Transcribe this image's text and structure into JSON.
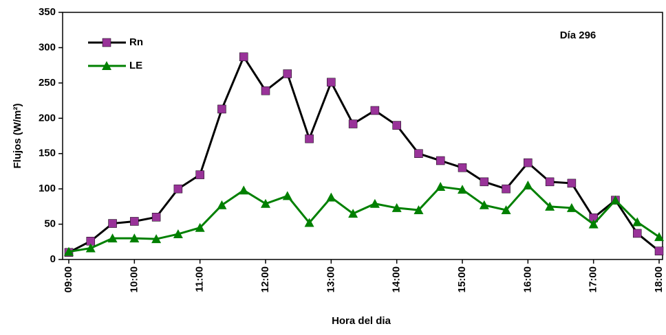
{
  "chart_data": {
    "type": "line",
    "x_label": "Hora del dia",
    "y_label": "Flujos  (W/m²)",
    "annotation": "Día 296",
    "categories": [
      "09:00",
      null,
      null,
      "10:00",
      null,
      null,
      "11:00",
      null,
      null,
      "12:00",
      null,
      null,
      "13:00",
      null,
      null,
      "14:00",
      null,
      null,
      "15:00",
      null,
      null,
      "16:00",
      null,
      null,
      "17:00",
      null,
      null,
      "18:00"
    ],
    "series": [
      {
        "name": "Rn",
        "color": "#000000",
        "marker_color": "#993399",
        "marker": "square",
        "values": [
          10,
          26,
          51,
          54,
          60,
          100,
          120,
          213,
          287,
          239,
          263,
          171,
          251,
          192,
          211,
          190,
          150,
          140,
          130,
          110,
          100,
          137,
          110,
          108,
          59,
          84,
          37,
          12
        ]
      },
      {
        "name": "LE",
        "color": "#008000",
        "marker_color": "#008000",
        "marker": "triangle",
        "values": [
          11,
          16,
          30,
          30,
          29,
          36,
          45,
          77,
          98,
          79,
          90,
          52,
          88,
          65,
          79,
          73,
          70,
          103,
          99,
          77,
          70,
          105,
          75,
          73,
          50,
          84,
          53,
          32
        ]
      }
    ],
    "ylim": [
      0,
      350
    ],
    "yticks": [
      0,
      50,
      100,
      150,
      200,
      250,
      300,
      350
    ],
    "legend": "upper left",
    "grid": false
  }
}
